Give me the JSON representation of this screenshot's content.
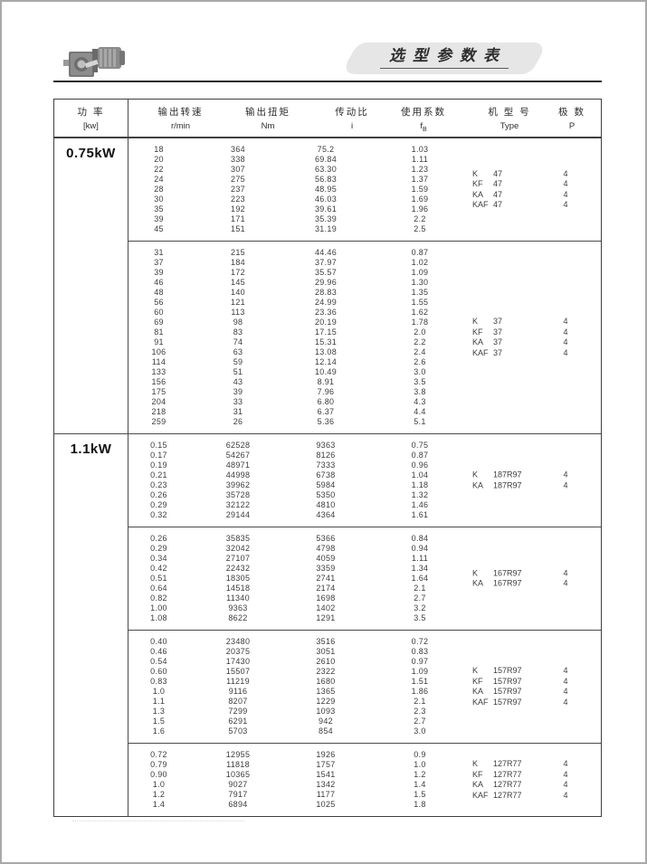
{
  "page": {
    "title": "选型参数表"
  },
  "table": {
    "headers": {
      "power_top": "功  率",
      "power_bottom": "[kw]",
      "speed_top": "输出转速",
      "speed_bottom": "r/min",
      "torque_top": "输出扭矩",
      "torque_bottom": "Nm",
      "ratio_top": "传动比",
      "ratio_bottom": "i",
      "factor_top": "使用系数",
      "factor_symbol": "f",
      "factor_sub": "B",
      "type_top": "机 型 号",
      "type_bottom": "Type",
      "poles_top": "极  数",
      "poles_bottom": "P"
    },
    "sections": [
      {
        "power": "0.75kW",
        "blocks": [
          {
            "rows": [
              [
                "18",
                "364",
                "75.2",
                "1.03"
              ],
              [
                "20",
                "338",
                "69.84",
                "1.11"
              ],
              [
                "22",
                "307",
                "63.30",
                "1.23"
              ],
              [
                "24",
                "275",
                "56.83",
                "1.37"
              ],
              [
                "28",
                "237",
                "48.95",
                "1.59"
              ],
              [
                "30",
                "223",
                "46.03",
                "1.69"
              ],
              [
                "35",
                "192",
                "39.61",
                "1.96"
              ],
              [
                "39",
                "171",
                "35.39",
                "2.2"
              ],
              [
                "45",
                "151",
                "31.19",
                "2.5"
              ]
            ],
            "types": [
              {
                "series": "K",
                "size": "47",
                "poles": "4"
              },
              {
                "series": "KF",
                "size": "47",
                "poles": "4"
              },
              {
                "series": "KA",
                "size": "47",
                "poles": "4"
              },
              {
                "series": "KAF",
                "size": "47",
                "poles": "4"
              }
            ]
          },
          {
            "rows": [
              [
                "31",
                "215",
                "44.46",
                "0.87"
              ],
              [
                "37",
                "184",
                "37.97",
                "1.02"
              ],
              [
                "39",
                "172",
                "35.57",
                "1.09"
              ],
              [
                "46",
                "145",
                "29.96",
                "1.30"
              ],
              [
                "48",
                "140",
                "28.83",
                "1.35"
              ],
              [
                "56",
                "121",
                "24.99",
                "1.55"
              ],
              [
                "60",
                "113",
                "23.36",
                "1.62"
              ],
              [
                "69",
                "98",
                "20.19",
                "1.78"
              ],
              [
                "81",
                "83",
                "17.15",
                "2.0"
              ],
              [
                "91",
                "74",
                "15.31",
                "2.2"
              ],
              [
                "106",
                "63",
                "13.08",
                "2.4"
              ],
              [
                "114",
                "59",
                "12.14",
                "2.6"
              ],
              [
                "133",
                "51",
                "10.49",
                "3.0"
              ],
              [
                "156",
                "43",
                "8.91",
                "3.5"
              ],
              [
                "175",
                "39",
                "7.96",
                "3.8"
              ],
              [
                "204",
                "33",
                "6.80",
                "4.3"
              ],
              [
                "218",
                "31",
                "6.37",
                "4.4"
              ],
              [
                "259",
                "26",
                "5.36",
                "5.1"
              ]
            ],
            "types": [
              {
                "series": "K",
                "size": "37",
                "poles": "4"
              },
              {
                "series": "KF",
                "size": "37",
                "poles": "4"
              },
              {
                "series": "KA",
                "size": "37",
                "poles": "4"
              },
              {
                "series": "KAF",
                "size": "37",
                "poles": "4"
              }
            ]
          }
        ]
      },
      {
        "power": "1.1kW",
        "blocks": [
          {
            "rows": [
              [
                "0.15",
                "62528",
                "9363",
                "0.75"
              ],
              [
                "0.17",
                "54267",
                "8126",
                "0.87"
              ],
              [
                "0.19",
                "48971",
                "7333",
                "0.96"
              ],
              [
                "0.21",
                "44998",
                "6738",
                "1.04"
              ],
              [
                "0.23",
                "39962",
                "5984",
                "1.18"
              ],
              [
                "0.26",
                "35728",
                "5350",
                "1.32"
              ],
              [
                "0.29",
                "32122",
                "4810",
                "1.46"
              ],
              [
                "0.32",
                "29144",
                "4364",
                "1.61"
              ]
            ],
            "types": [
              {
                "series": "K",
                "size": "187R97",
                "poles": "4"
              },
              {
                "series": "KA",
                "size": "187R97",
                "poles": "4"
              }
            ]
          },
          {
            "rows": [
              [
                "0.26",
                "35835",
                "5366",
                "0.84"
              ],
              [
                "0.29",
                "32042",
                "4798",
                "0.94"
              ],
              [
                "0.34",
                "27107",
                "4059",
                "1.11"
              ],
              [
                "0.42",
                "22432",
                "3359",
                "1.34"
              ],
              [
                "0.51",
                "18305",
                "2741",
                "1.64"
              ],
              [
                "0.64",
                "14518",
                "2174",
                "2.1"
              ],
              [
                "0.82",
                "11340",
                "1698",
                "2.7"
              ],
              [
                "1.00",
                "9363",
                "1402",
                "3.2"
              ],
              [
                "1.08",
                "8622",
                "1291",
                "3.5"
              ]
            ],
            "types": [
              {
                "series": "K",
                "size": "167R97",
                "poles": "4"
              },
              {
                "series": "KA",
                "size": "167R97",
                "poles": "4"
              }
            ]
          },
          {
            "rows": [
              [
                "0.40",
                "23480",
                "3516",
                "0.72"
              ],
              [
                "0.46",
                "20375",
                "3051",
                "0.83"
              ],
              [
                "0.54",
                "17430",
                "2610",
                "0.97"
              ],
              [
                "0.60",
                "15507",
                "2322",
                "1.09"
              ],
              [
                "0.83",
                "11219",
                "1680",
                "1.51"
              ],
              [
                "1.0",
                "9116",
                "1365",
                "1.86"
              ],
              [
                "1.1",
                "8207",
                "1229",
                "2.1"
              ],
              [
                "1.3",
                "7299",
                "1093",
                "2.3"
              ],
              [
                "1.5",
                "6291",
                "942",
                "2.7"
              ],
              [
                "1.6",
                "5703",
                "854",
                "3.0"
              ]
            ],
            "types": [
              {
                "series": "K",
                "size": "157R97",
                "poles": "4"
              },
              {
                "series": "KF",
                "size": "157R97",
                "poles": "4"
              },
              {
                "series": "KA",
                "size": "157R97",
                "poles": "4"
              },
              {
                "series": "KAF",
                "size": "157R97",
                "poles": "4"
              }
            ]
          },
          {
            "rows": [
              [
                "0.72",
                "12955",
                "1926",
                "0.9"
              ],
              [
                "0.79",
                "11818",
                "1757",
                "1.0"
              ],
              [
                "0.90",
                "10365",
                "1541",
                "1.2"
              ],
              [
                "1.0",
                "9027",
                "1342",
                "1.4"
              ],
              [
                "1.2",
                "7917",
                "1177",
                "1.5"
              ],
              [
                "1.4",
                "6894",
                "1025",
                "1.8"
              ]
            ],
            "types": [
              {
                "series": "K",
                "size": "127R77",
                "poles": "4"
              },
              {
                "series": "KF",
                "size": "127R77",
                "poles": "4"
              },
              {
                "series": "KA",
                "size": "127R77",
                "poles": "4"
              },
              {
                "series": "KAF",
                "size": "127R77",
                "poles": "4"
              }
            ]
          }
        ]
      }
    ]
  }
}
